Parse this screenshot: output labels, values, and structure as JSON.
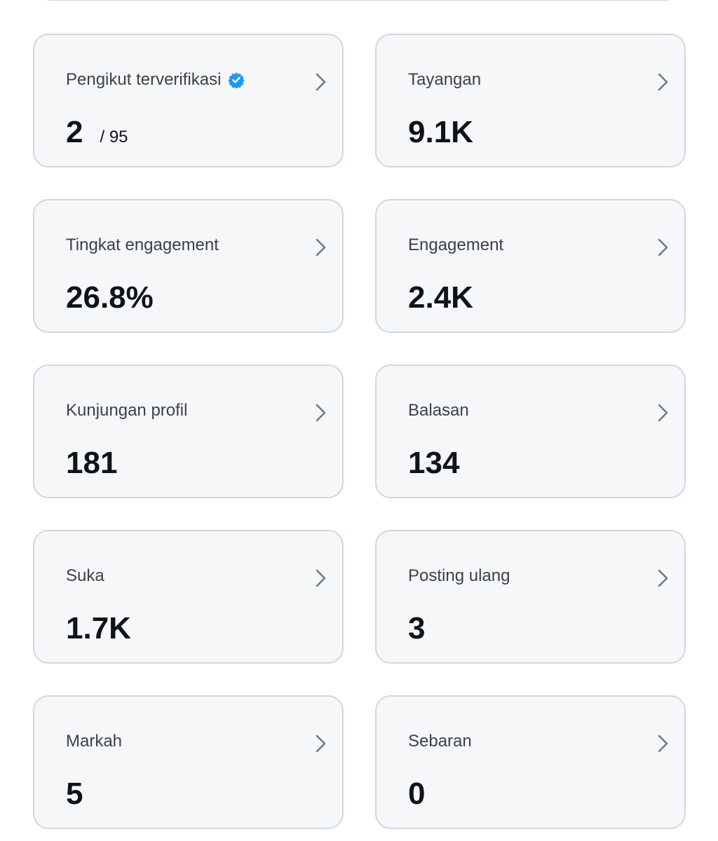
{
  "cards": [
    {
      "label": "Pengikut terverifikasi",
      "verified": true,
      "value": "2",
      "total": "/ 95"
    },
    {
      "label": "Tayangan",
      "value": "9.1K"
    },
    {
      "label": "Tingkat engagement",
      "value": "26.8%"
    },
    {
      "label": "Engagement",
      "value": "2.4K"
    },
    {
      "label": "Kunjungan profil",
      "value": "181"
    },
    {
      "label": "Balasan",
      "value": "134"
    },
    {
      "label": "Suka",
      "value": "1.7K"
    },
    {
      "label": "Posting ulang",
      "value": "3"
    },
    {
      "label": "Markah",
      "value": "5"
    },
    {
      "label": "Sebaran",
      "value": "0"
    }
  ]
}
